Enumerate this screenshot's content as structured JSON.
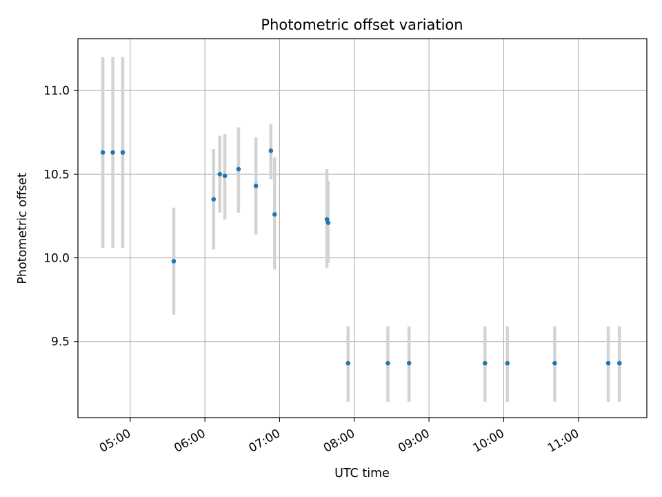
{
  "chart_data": {
    "type": "scatter",
    "title": "Photometric offset variation",
    "xlabel": "UTC time",
    "ylabel": "Photometric offset",
    "x_axis_type": "time",
    "xlim": [
      "04:18",
      "11:55"
    ],
    "ylim": [
      9.045,
      11.31
    ],
    "x_ticks": [
      "05:00",
      "06:00",
      "07:00",
      "08:00",
      "09:00",
      "10:00",
      "11:00"
    ],
    "y_ticks": [
      9.5,
      10.0,
      10.5,
      11.0
    ],
    "y_tick_labels": [
      "9.5",
      "10.0",
      "10.5",
      "11.0"
    ],
    "grid": true,
    "legend": "none",
    "colors": {
      "points": "#1f77b4",
      "error_bars": "#d3d3d3",
      "grid": "#b0b0b0"
    },
    "points": [
      {
        "time": "04:38",
        "y": 10.63,
        "err_low": 10.06,
        "err_high": 11.2
      },
      {
        "time": "04:46",
        "y": 10.63,
        "err_low": 10.06,
        "err_high": 11.2
      },
      {
        "time": "04:54",
        "y": 10.63,
        "err_low": 10.06,
        "err_high": 11.2
      },
      {
        "time": "05:35",
        "y": 9.98,
        "err_low": 9.66,
        "err_high": 10.3
      },
      {
        "time": "06:07",
        "y": 10.35,
        "err_low": 10.05,
        "err_high": 10.65
      },
      {
        "time": "06:12",
        "y": 10.5,
        "err_low": 10.27,
        "err_high": 10.73
      },
      {
        "time": "06:16",
        "y": 10.49,
        "err_low": 10.23,
        "err_high": 10.74
      },
      {
        "time": "06:27",
        "y": 10.53,
        "err_low": 10.27,
        "err_high": 10.78
      },
      {
        "time": "06:41",
        "y": 10.43,
        "err_low": 10.14,
        "err_high": 10.72
      },
      {
        "time": "06:53",
        "y": 10.64,
        "err_low": 10.47,
        "err_high": 10.8
      },
      {
        "time": "06:56",
        "y": 10.26,
        "err_low": 9.93,
        "err_high": 10.6
      },
      {
        "time": "07:38",
        "y": 10.23,
        "err_low": 9.94,
        "err_high": 10.53
      },
      {
        "time": "07:39",
        "y": 10.21,
        "err_low": 9.97,
        "err_high": 10.46
      },
      {
        "time": "07:55",
        "y": 9.37,
        "err_low": 9.14,
        "err_high": 9.59
      },
      {
        "time": "08:27",
        "y": 9.37,
        "err_low": 9.14,
        "err_high": 9.59
      },
      {
        "time": "08:44",
        "y": 9.37,
        "err_low": 9.14,
        "err_high": 9.59
      },
      {
        "time": "09:45",
        "y": 9.37,
        "err_low": 9.14,
        "err_high": 9.59
      },
      {
        "time": "10:03",
        "y": 9.37,
        "err_low": 9.14,
        "err_high": 9.59
      },
      {
        "time": "10:41",
        "y": 9.37,
        "err_low": 9.14,
        "err_high": 9.59
      },
      {
        "time": "11:24",
        "y": 9.37,
        "err_low": 9.14,
        "err_high": 9.59
      },
      {
        "time": "11:33",
        "y": 9.37,
        "err_low": 9.14,
        "err_high": 9.59
      }
    ]
  }
}
